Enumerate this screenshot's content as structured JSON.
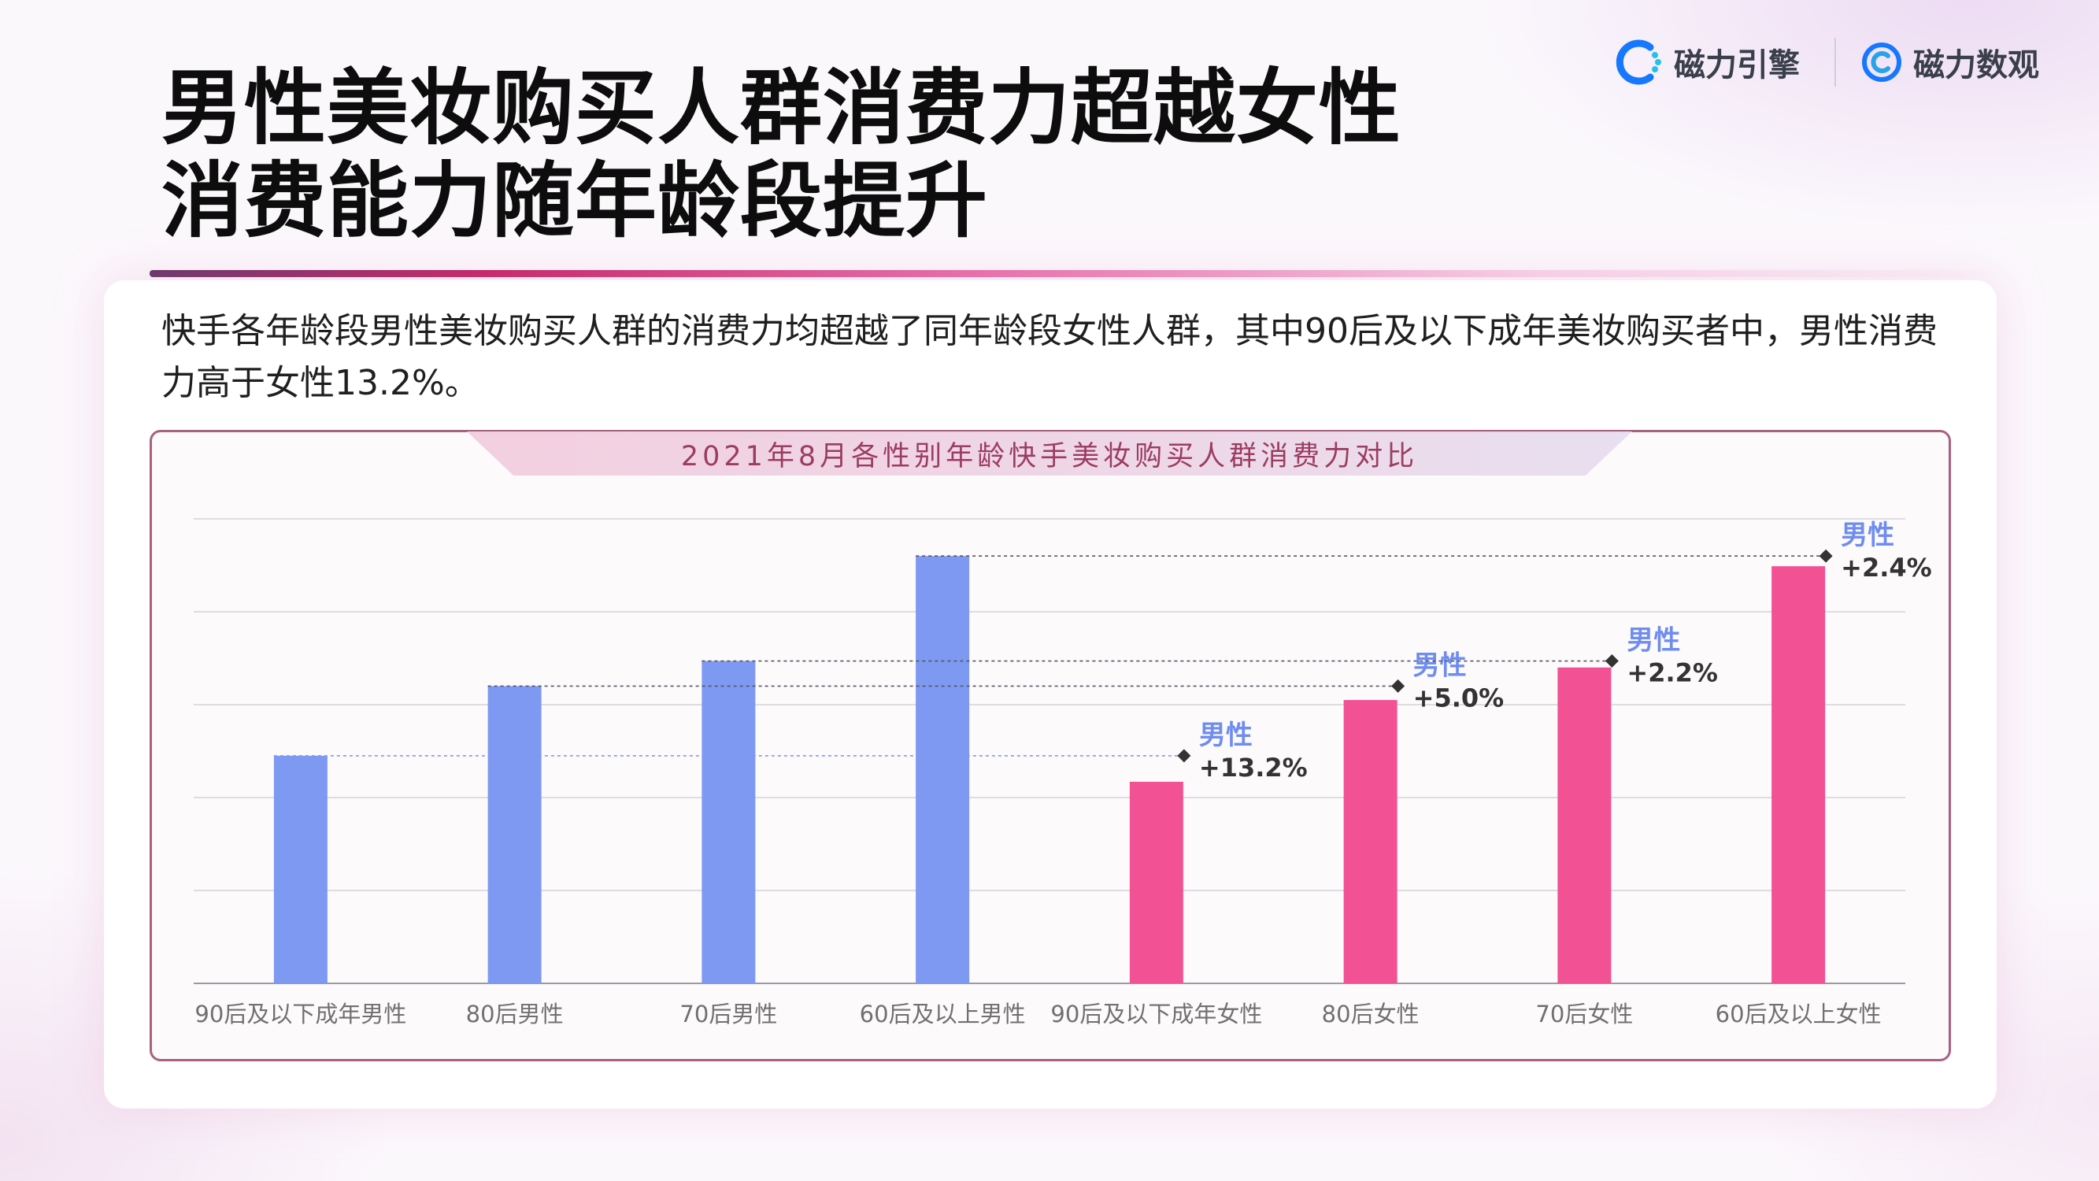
{
  "header": {
    "title_line1": "男性美妆购买人群消费力超越女性",
    "title_line2": "消费能力随年龄段提升"
  },
  "brands": [
    {
      "name": "磁力引擎",
      "icon": "ci-engine-logo",
      "color": "#1677ff"
    },
    {
      "name": "磁力数观",
      "icon": "ci-shuguan-logo",
      "color": "#1677ff"
    }
  ],
  "description": "快手各年龄段男性美妆购买人群的消费力均超越了同年龄段女性人群，其中90后及以下成年美妆购买者中，男性消费力高于女性13.2%。",
  "chart_data": {
    "type": "bar",
    "title": "2021年8月各性别年龄快手美妆购买人群消费力对比",
    "categories": [
      "90后及以下成年男性",
      "80后男性",
      "70后男性",
      "60后及以上男性",
      "90后及以下成年女性",
      "80后女性",
      "70后女性",
      "60后及以上女性"
    ],
    "values": [
      2.45,
      3.2,
      3.47,
      4.6,
      2.17,
      3.05,
      3.4,
      4.49
    ],
    "bar_colors": [
      "#7e99f1",
      "#7e99f1",
      "#7e99f1",
      "#7e99f1",
      "#f25193",
      "#f25193",
      "#f25193",
      "#f25193"
    ],
    "ylim": [
      0,
      5
    ],
    "grid": true,
    "xlabel": "",
    "ylabel": "",
    "annotations": [
      {
        "from_index": 0,
        "to_index": 4,
        "label": "男性",
        "value": "+13.2%"
      },
      {
        "from_index": 1,
        "to_index": 5,
        "label": "男性",
        "value": "+5.0%"
      },
      {
        "from_index": 2,
        "to_index": 6,
        "label": "男性",
        "value": "+2.2%"
      },
      {
        "from_index": 3,
        "to_index": 7,
        "label": "男性",
        "value": "+2.4%"
      }
    ],
    "colors": {
      "male": "#7e99f1",
      "female": "#f25193",
      "annotation_label": "#6f8df0",
      "annotation_value": "#333333",
      "grid": "#dcdce2",
      "tick_label": "#707070"
    }
  }
}
